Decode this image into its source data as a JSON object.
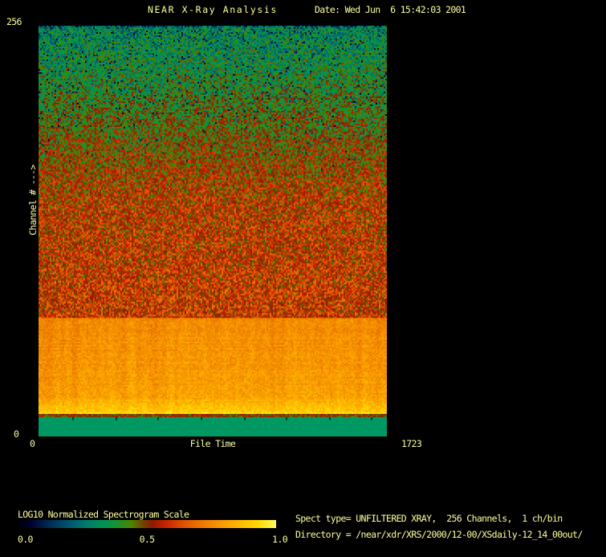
{
  "window": {
    "background": "#000000",
    "text_color": "#ffff9e"
  },
  "header": {
    "title": "NEAR X-Ray Analysis",
    "date": "Date: Wed Jun  6 15:42:03 2001"
  },
  "y_axis": {
    "axis_label": "Channel # --->",
    "max_label": "256",
    "min_label": "0"
  },
  "x_axis": {
    "axis_label": "File Time",
    "min_label": "0",
    "max_label": "1723"
  },
  "colorbar": {
    "title": "LOG10 Normalized Spectrogram Scale",
    "tick_labels": [
      "0.0",
      "0.5",
      "1.0"
    ]
  },
  "info": {
    "spect_type_line": "Spect type= UNFILTERED XRAY,  256 Channels,  1 ch/bin",
    "directory_line": "Directory = /near/xdr/XRS/2000/12-00/XSdaily-12_14_00out/"
  },
  "chart_data": {
    "type": "heatmap",
    "title": "NEAR X-Ray Analysis",
    "xlabel": "File Time",
    "ylabel": "Channel #",
    "xlim": [
      0,
      1723
    ],
    "ylim": [
      0,
      256
    ],
    "scale_label": "LOG10 Normalized Spectrogram Scale",
    "scale_range": [
      0.0,
      1.0
    ],
    "description": "Normalized X-ray spectrogram: high channels (~70-256) noisy green fading into red (values ~0.30-0.58), low channels (~12-70) bright orange rising to yellow (~0.75-0.93) separated by a thin dark-red line, channels 0-12 flat no-data green band",
    "palette_stops": [
      {
        "v": 0.0,
        "c": "#000004"
      },
      {
        "v": 0.05,
        "c": "#00002e"
      },
      {
        "v": 0.12,
        "c": "#002a52"
      },
      {
        "v": 0.2,
        "c": "#00566e"
      },
      {
        "v": 0.27,
        "c": "#007e68"
      },
      {
        "v": 0.33,
        "c": "#009254"
      },
      {
        "v": 0.38,
        "c": "#14942e"
      },
      {
        "v": 0.44,
        "c": "#4e8400"
      },
      {
        "v": 0.48,
        "c": "#6e4a00"
      },
      {
        "v": 0.52,
        "c": "#8c1c00"
      },
      {
        "v": 0.57,
        "c": "#c62000"
      },
      {
        "v": 0.63,
        "c": "#dd4a00"
      },
      {
        "v": 0.7,
        "c": "#ea7200"
      },
      {
        "v": 0.78,
        "c": "#f69600"
      },
      {
        "v": 0.86,
        "c": "#ffb800"
      },
      {
        "v": 0.93,
        "c": "#ffd800"
      },
      {
        "v": 1.0,
        "c": "#fff95a"
      }
    ],
    "grid": {
      "cols": 217,
      "rows": 256
    },
    "value_profile": [
      [
        0,
        0.3
      ],
      [
        25,
        0.36
      ],
      [
        60,
        0.45
      ],
      [
        110,
        0.555
      ],
      [
        181,
        0.585
      ],
      [
        182,
        0.75
      ],
      [
        230,
        0.8
      ],
      [
        242,
        0.93
      ]
    ],
    "noise_profile": [
      [
        0,
        0.13
      ],
      [
        180,
        0.13
      ],
      [
        182,
        0.045
      ],
      [
        242,
        0.045
      ]
    ],
    "dark_speckle_profile": [
      [
        0,
        0.1
      ],
      [
        75,
        0.02
      ],
      [
        100,
        0.0
      ],
      [
        242,
        0.0
      ]
    ],
    "separator_band": {
      "rows": [
        242,
        244
      ],
      "value": 0.5,
      "noise": 0.07
    },
    "no_data_band": {
      "rows": [
        244,
        256
      ],
      "color": "#009862",
      "channels": [
        0,
        12
      ]
    },
    "tick_marks": {
      "row": 244,
      "height": 2,
      "width": 1,
      "xs": [
        21,
        48,
        74,
        101,
        128,
        154,
        181,
        207
      ]
    },
    "column_streak_amp": 0.022,
    "seed": 1234567
  }
}
